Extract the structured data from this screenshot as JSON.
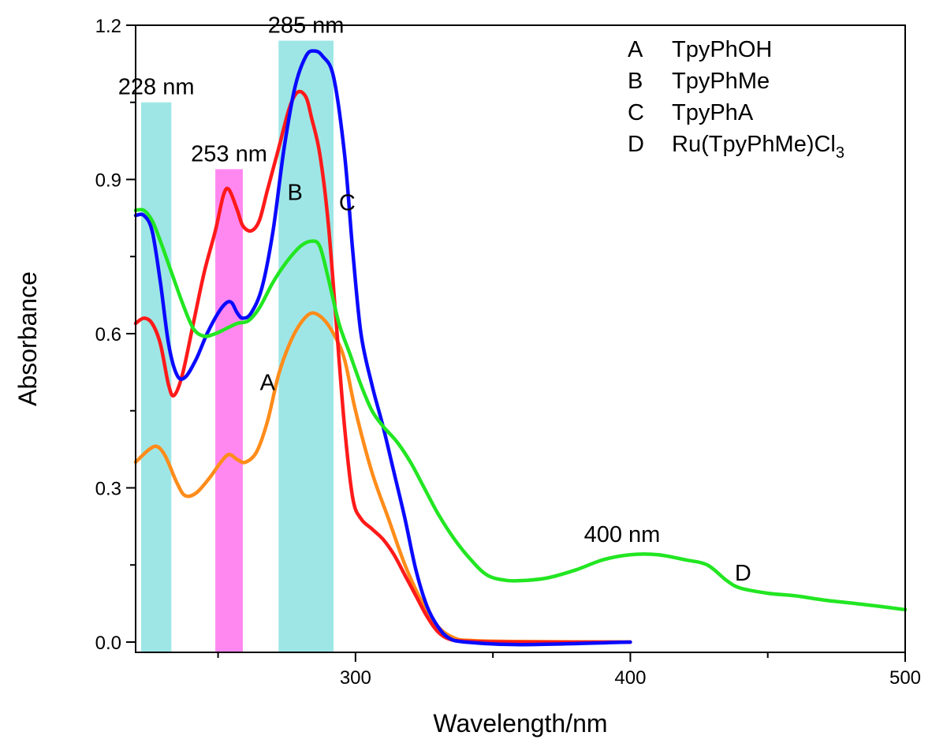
{
  "chart_data": {
    "type": "line",
    "xlabel": "Wavelength/nm",
    "ylabel": "Absorbance",
    "xlim": [
      220,
      500
    ],
    "ylim": [
      -0.02,
      1.2
    ],
    "xticks": [
      300,
      400,
      500
    ],
    "yticks": [
      0.0,
      0.3,
      0.6,
      0.9,
      1.2
    ],
    "y_tick_labels": [
      "0.0",
      "0.3",
      "0.6",
      "0.9",
      "1.2"
    ],
    "grid": false,
    "legend_position": "top-right",
    "legend": [
      {
        "letter": "A",
        "name": "TpyPhOH"
      },
      {
        "letter": "B",
        "name": "TpyPhMe"
      },
      {
        "letter": "C",
        "name": "TpyPhA"
      },
      {
        "letter": "D",
        "name": "Ru(TpyPhMe)Cl",
        "subscript": "3"
      }
    ],
    "bands": [
      {
        "x_start": 222,
        "x_end": 233,
        "top": 1.05,
        "color": "#9ee6e6",
        "label": "228 nm"
      },
      {
        "x_start": 249,
        "x_end": 259,
        "top": 0.92,
        "color": "#ff88f0",
        "label": "253 nm"
      },
      {
        "x_start": 272,
        "x_end": 292,
        "top": 1.17,
        "color": "#9ee6e6",
        "label": "285 nm"
      }
    ],
    "peak_annotations": [
      {
        "label": "400 nm",
        "x": 397,
        "y": 0.195
      }
    ],
    "series": [
      {
        "label": "A",
        "color": "#ff8c1a",
        "label_pos": {
          "x": 268,
          "y": 0.49
        },
        "points": [
          [
            220,
            0.35
          ],
          [
            225,
            0.375
          ],
          [
            228,
            0.38
          ],
          [
            231,
            0.36
          ],
          [
            235,
            0.31
          ],
          [
            238,
            0.285
          ],
          [
            242,
            0.29
          ],
          [
            247,
            0.32
          ],
          [
            251,
            0.35
          ],
          [
            254,
            0.365
          ],
          [
            257,
            0.355
          ],
          [
            260,
            0.35
          ],
          [
            264,
            0.37
          ],
          [
            268,
            0.43
          ],
          [
            272,
            0.52
          ],
          [
            276,
            0.58
          ],
          [
            280,
            0.62
          ],
          [
            284,
            0.64
          ],
          [
            288,
            0.63
          ],
          [
            292,
            0.6
          ],
          [
            296,
            0.55
          ],
          [
            300,
            0.45
          ],
          [
            306,
            0.33
          ],
          [
            312,
            0.24
          ],
          [
            318,
            0.15
          ],
          [
            324,
            0.08
          ],
          [
            330,
            0.03
          ],
          [
            336,
            0.008
          ],
          [
            342,
            0.003
          ],
          [
            360,
            0.001
          ],
          [
            400,
            0.0
          ]
        ]
      },
      {
        "label": "B",
        "color": "#ff1a1a",
        "label_pos": {
          "x": 278,
          "y": 0.86
        },
        "points": [
          [
            220,
            0.62
          ],
          [
            223,
            0.63
          ],
          [
            226,
            0.62
          ],
          [
            229,
            0.58
          ],
          [
            232,
            0.5
          ],
          [
            234,
            0.48
          ],
          [
            237,
            0.52
          ],
          [
            241,
            0.62
          ],
          [
            245,
            0.72
          ],
          [
            249,
            0.8
          ],
          [
            252,
            0.87
          ],
          [
            254,
            0.88
          ],
          [
            257,
            0.84
          ],
          [
            259,
            0.81
          ],
          [
            262,
            0.8
          ],
          [
            265,
            0.82
          ],
          [
            268,
            0.88
          ],
          [
            272,
            0.96
          ],
          [
            276,
            1.04
          ],
          [
            279,
            1.07
          ],
          [
            282,
            1.06
          ],
          [
            284,
            1.02
          ],
          [
            287,
            0.95
          ],
          [
            290,
            0.82
          ],
          [
            293,
            0.62
          ],
          [
            296,
            0.42
          ],
          [
            299,
            0.28
          ],
          [
            302,
            0.24
          ],
          [
            306,
            0.22
          ],
          [
            310,
            0.2
          ],
          [
            314,
            0.17
          ],
          [
            318,
            0.13
          ],
          [
            322,
            0.09
          ],
          [
            326,
            0.05
          ],
          [
            330,
            0.02
          ],
          [
            334,
            0.006
          ],
          [
            340,
            0.002
          ],
          [
            360,
            0.0
          ],
          [
            400,
            0.0
          ]
        ]
      },
      {
        "label": "C",
        "color": "#0a0aff",
        "label_pos": {
          "x": 297,
          "y": 0.84
        },
        "points": [
          [
            220,
            0.83
          ],
          [
            223,
            0.83
          ],
          [
            226,
            0.8
          ],
          [
            229,
            0.7
          ],
          [
            232,
            0.58
          ],
          [
            235,
            0.52
          ],
          [
            238,
            0.515
          ],
          [
            242,
            0.55
          ],
          [
            246,
            0.6
          ],
          [
            250,
            0.64
          ],
          [
            253,
            0.66
          ],
          [
            255,
            0.66
          ],
          [
            257,
            0.64
          ],
          [
            259,
            0.63
          ],
          [
            262,
            0.64
          ],
          [
            266,
            0.69
          ],
          [
            270,
            0.8
          ],
          [
            274,
            0.96
          ],
          [
            278,
            1.08
          ],
          [
            282,
            1.14
          ],
          [
            285,
            1.15
          ],
          [
            288,
            1.14
          ],
          [
            292,
            1.1
          ],
          [
            296,
            0.95
          ],
          [
            299,
            0.76
          ],
          [
            302,
            0.6
          ],
          [
            306,
            0.5
          ],
          [
            310,
            0.42
          ],
          [
            314,
            0.33
          ],
          [
            318,
            0.24
          ],
          [
            322,
            0.14
          ],
          [
            326,
            0.07
          ],
          [
            330,
            0.03
          ],
          [
            334,
            0.008
          ],
          [
            340,
            0.0
          ],
          [
            360,
            -0.005
          ],
          [
            400,
            0.0
          ]
        ]
      },
      {
        "label": "D",
        "color": "#22e622",
        "label_pos": {
          "x": 441,
          "y": 0.12
        },
        "points": [
          [
            220,
            0.84
          ],
          [
            223,
            0.84
          ],
          [
            226,
            0.82
          ],
          [
            229,
            0.78
          ],
          [
            233,
            0.72
          ],
          [
            237,
            0.66
          ],
          [
            241,
            0.61
          ],
          [
            245,
            0.595
          ],
          [
            249,
            0.6
          ],
          [
            253,
            0.61
          ],
          [
            257,
            0.62
          ],
          [
            261,
            0.625
          ],
          [
            265,
            0.65
          ],
          [
            270,
            0.7
          ],
          [
            275,
            0.74
          ],
          [
            280,
            0.77
          ],
          [
            284,
            0.78
          ],
          [
            287,
            0.77
          ],
          [
            290,
            0.71
          ],
          [
            294,
            0.62
          ],
          [
            298,
            0.56
          ],
          [
            302,
            0.5
          ],
          [
            306,
            0.45
          ],
          [
            310,
            0.42
          ],
          [
            315,
            0.39
          ],
          [
            320,
            0.35
          ],
          [
            325,
            0.3
          ],
          [
            330,
            0.25
          ],
          [
            336,
            0.2
          ],
          [
            342,
            0.16
          ],
          [
            348,
            0.13
          ],
          [
            355,
            0.12
          ],
          [
            362,
            0.12
          ],
          [
            370,
            0.125
          ],
          [
            380,
            0.14
          ],
          [
            390,
            0.16
          ],
          [
            400,
            0.17
          ],
          [
            410,
            0.17
          ],
          [
            420,
            0.16
          ],
          [
            428,
            0.15
          ],
          [
            435,
            0.12
          ],
          [
            440,
            0.105
          ],
          [
            450,
            0.095
          ],
          [
            460,
            0.09
          ],
          [
            470,
            0.082
          ],
          [
            480,
            0.076
          ],
          [
            490,
            0.07
          ],
          [
            500,
            0.063
          ]
        ]
      }
    ]
  }
}
